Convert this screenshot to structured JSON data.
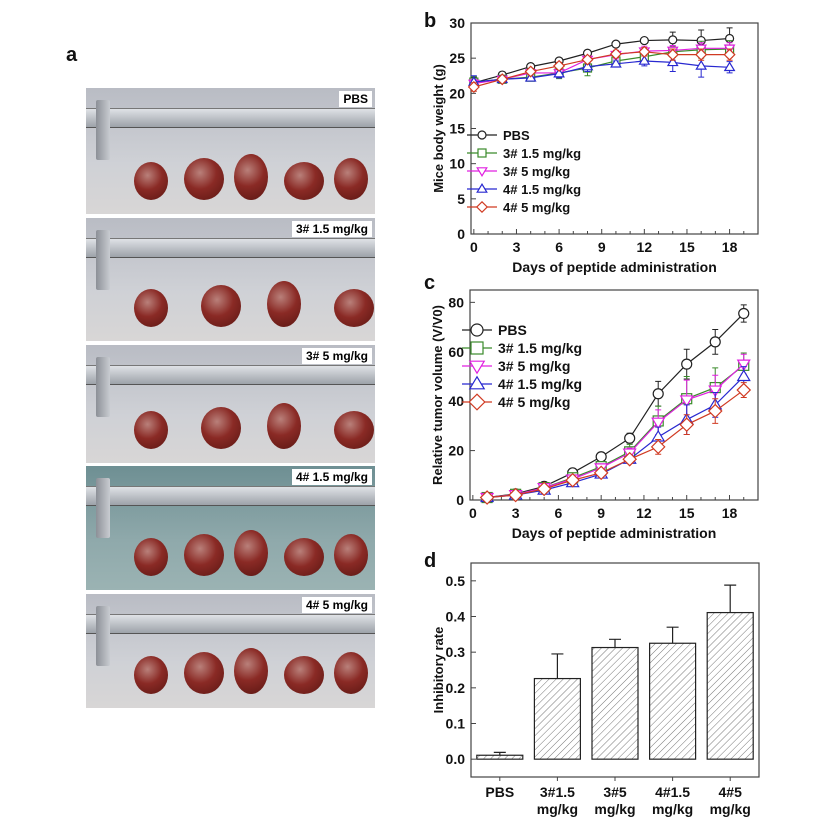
{
  "panel_labels": {
    "a": "a",
    "b": "b",
    "c": "c",
    "d": "d"
  },
  "photos": [
    {
      "label": "PBS",
      "tumors": 5,
      "teal": false
    },
    {
      "label": "3# 1.5 mg/kg",
      "tumors": 4,
      "teal": false
    },
    {
      "label": "3# 5 mg/kg",
      "tumors": 4,
      "teal": false
    },
    {
      "label": "4# 1.5 mg/kg",
      "tumors": 5,
      "teal": true
    },
    {
      "label": "4# 5 mg/kg",
      "tumors": 5,
      "teal": false
    }
  ],
  "series_style": [
    {
      "color": "#222222",
      "marker": "circle"
    },
    {
      "color": "#3a8a2a",
      "marker": "square"
    },
    {
      "color": "#e020e0",
      "marker": "triangle-down"
    },
    {
      "color": "#2828d0",
      "marker": "triangle-up"
    },
    {
      "color": "#d03a22",
      "marker": "diamond"
    }
  ],
  "chart_data": [
    {
      "id": "b",
      "type": "line",
      "xlabel": "Days of peptide administration",
      "ylabel": "Mice body weight (g)",
      "xlim": [
        -0.2,
        20
      ],
      "ylim": [
        0,
        30
      ],
      "xticks": [
        0,
        3,
        6,
        9,
        12,
        15,
        18
      ],
      "yticks": [
        0,
        5,
        10,
        15,
        20,
        25,
        30
      ],
      "legend": "center-left",
      "grid": false,
      "x": [
        0,
        2,
        4,
        6,
        8,
        10,
        12,
        14,
        16,
        18
      ],
      "series": [
        {
          "name": "PBS",
          "values": [
            21.5,
            22.6,
            23.8,
            24.6,
            25.7,
            27.0,
            27.5,
            27.6,
            27.5,
            27.8
          ],
          "err": [
            0.8,
            0.4,
            0.3,
            0.4,
            0.4,
            0.3,
            0.3,
            1.1,
            1.5,
            1.5
          ]
        },
        {
          "name": "3# 1.5 mg/kg",
          "values": [
            21.6,
            22.0,
            22.3,
            22.9,
            23.6,
            24.6,
            25.2,
            25.9,
            26.2,
            26.3
          ],
          "err": [
            0.8,
            0.5,
            0.4,
            0.8,
            1.1,
            0.6,
            0.6,
            0.8,
            1.2,
            1.2
          ]
        },
        {
          "name": "3# 5 mg/kg",
          "values": [
            21.4,
            22.0,
            22.9,
            22.9,
            24.8,
            25.5,
            26.0,
            26.1,
            26.4,
            26.4
          ],
          "err": [
            0.6,
            0.4,
            0.5,
            0.5,
            0.5,
            0.6,
            0.7,
            0.7,
            0.8,
            0.8
          ]
        },
        {
          "name": "4# 1.5 mg/kg",
          "values": [
            21.6,
            22.0,
            22.2,
            22.8,
            23.8,
            24.2,
            24.6,
            24.4,
            23.9,
            23.7
          ],
          "err": [
            0.9,
            0.5,
            0.4,
            0.6,
            0.7,
            0.4,
            0.7,
            1.3,
            1.6,
            0.8
          ]
        },
        {
          "name": "4# 5 mg/kg",
          "values": [
            20.9,
            22.0,
            23.1,
            23.9,
            24.8,
            25.6,
            25.9,
            25.5,
            25.5,
            25.5
          ],
          "err": [
            0.6,
            0.4,
            0.4,
            0.5,
            0.5,
            0.5,
            0.6,
            0.8,
            0.8,
            0.8
          ]
        }
      ]
    },
    {
      "id": "c",
      "type": "line",
      "xlabel": "Days of peptide administration",
      "ylabel": "Relative tumor volume (V/V0)",
      "xlim": [
        -0.2,
        20
      ],
      "ylim": [
        0,
        85
      ],
      "xticks": [
        0,
        3,
        6,
        9,
        12,
        15,
        18
      ],
      "yticks": [
        0,
        20,
        40,
        60,
        80
      ],
      "legend": "top-left",
      "grid": false,
      "x": [
        1,
        3,
        5,
        7,
        9,
        11,
        13,
        15,
        17,
        19
      ],
      "series": [
        {
          "name": "PBS",
          "values": [
            1,
            2.5,
            5.5,
            11,
            17.5,
            25,
            43,
            55,
            64,
            75.5
          ],
          "err": [
            0.5,
            0.5,
            1,
            1,
            1.5,
            2,
            5,
            6,
            5,
            3.5
          ]
        },
        {
          "name": "3# 1.5 mg/kg",
          "values": [
            1,
            2.3,
            5,
            9,
            13.5,
            19.5,
            32,
            41,
            45.5,
            54.5
          ],
          "err": [
            0.5,
            0.5,
            1,
            1,
            1.5,
            3,
            6,
            9,
            8,
            5
          ]
        },
        {
          "name": "3# 5 mg/kg",
          "values": [
            1,
            2.2,
            5,
            8.5,
            13,
            19,
            31.5,
            40.5,
            44.5,
            55
          ],
          "err": [
            0.5,
            0.5,
            1,
            1,
            1.5,
            2,
            5,
            8,
            6,
            4
          ]
        },
        {
          "name": "4# 1.5 mg/kg",
          "values": [
            1,
            2,
            4,
            7,
            10.5,
            16.5,
            25.5,
            32.5,
            38.5,
            50
          ],
          "err": [
            0.5,
            0.5,
            1,
            1,
            1.5,
            1.5,
            4,
            6,
            5,
            4
          ]
        },
        {
          "name": "4# 5 mg/kg",
          "values": [
            1,
            2,
            4.5,
            8,
            11,
            16.5,
            21.5,
            30.5,
            36,
            44.5
          ],
          "err": [
            0.5,
            0.5,
            1,
            1,
            1.5,
            1.5,
            3,
            4,
            5,
            3
          ]
        }
      ]
    },
    {
      "id": "d",
      "type": "bar",
      "xlabel": "",
      "ylabel": "Inhibitory rate",
      "ylim": [
        -0.05,
        0.55
      ],
      "yticks": [
        0.0,
        0.1,
        0.2,
        0.3,
        0.4,
        0.5
      ],
      "grid": false,
      "fill": "hatched",
      "categories": [
        [
          "PBS",
          ""
        ],
        [
          "3#1.5",
          "mg/kg"
        ],
        [
          "3#5",
          "mg/kg"
        ],
        [
          "4#1.5",
          "mg/kg"
        ],
        [
          "4#5",
          "mg/kg"
        ]
      ],
      "values": [
        0.011,
        0.226,
        0.313,
        0.325,
        0.411
      ],
      "err": [
        0.008,
        0.069,
        0.023,
        0.045,
        0.077
      ]
    }
  ]
}
